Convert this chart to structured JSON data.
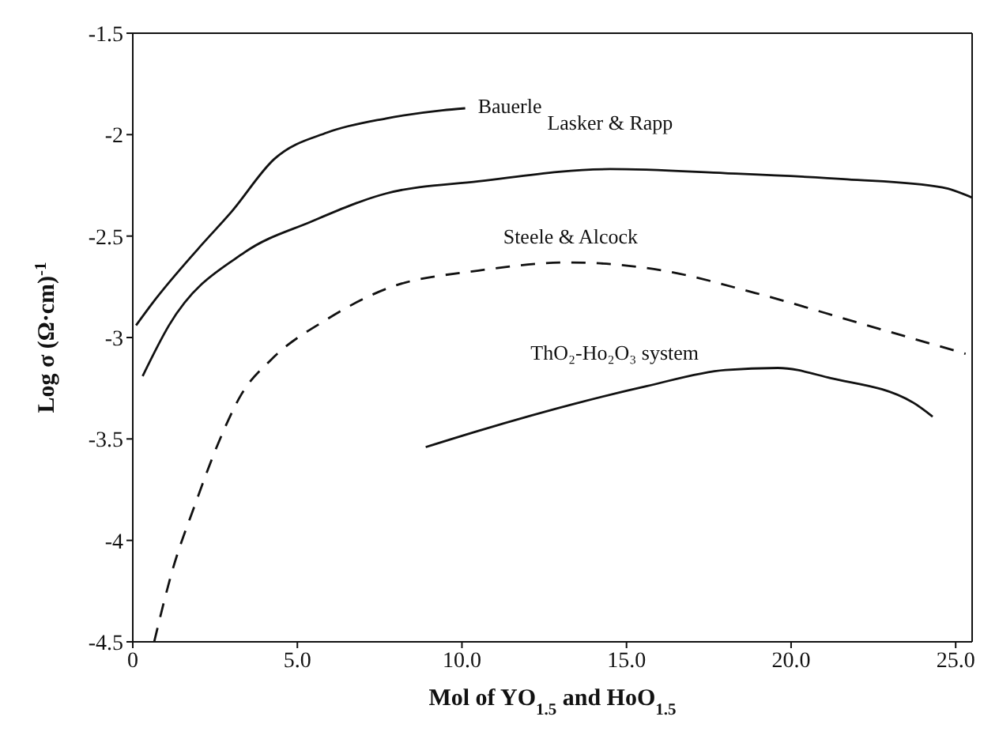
{
  "chart_data": {
    "type": "line",
    "xlabel": "Mol of YO$_{1.5}$ and HoO$_{1.5}$",
    "ylabel": "Log σ (Ω·cm)$^{-1}$",
    "xlim": [
      0,
      25.5
    ],
    "xticks": [
      0,
      {
        "value": 5,
        "label": "5.0"
      },
      {
        "value": 10,
        "label": "10.0"
      },
      {
        "value": 15,
        "label": "15.0"
      },
      {
        "value": 20,
        "label": "20.0"
      },
      {
        "value": 25,
        "label": "25.0"
      }
    ],
    "ylim": [
      -4.5,
      -1.5
    ],
    "yticks": [
      -4.5,
      -4,
      -3.5,
      -3,
      -2.5,
      -2,
      -1.5
    ],
    "series": [
      {
        "name": "Bauerle",
        "color": "#111111",
        "line_style": "solid",
        "x": [
          0.1,
          0.6,
          2.0,
          3.0,
          4.3,
          5.9,
          7.7,
          9.4,
          10.1
        ],
        "values": [
          -2.94,
          -2.83,
          -2.56,
          -2.38,
          -2.12,
          -1.99,
          -1.92,
          -1.88,
          -1.87
        ]
      },
      {
        "name": "Lasker & Rapp",
        "color": "#111111",
        "line_style": "solid",
        "x": [
          0.3,
          1.1,
          3.4,
          5.4,
          7.7,
          10.5,
          14.5,
          18.0,
          21.7,
          24.6,
          25.5
        ],
        "values": [
          -3.19,
          -2.94,
          -2.58,
          -2.43,
          -2.29,
          -2.23,
          -2.17,
          -2.19,
          -2.22,
          -2.26,
          -2.31
        ]
      },
      {
        "name": "Steele & Alcock",
        "color": "#111111",
        "line_style": "dashed",
        "x": [
          0.65,
          1.2,
          1.9,
          2.6,
          3.3,
          4.2,
          5.9,
          7.7,
          10.5,
          13.3,
          16.1,
          18.9,
          22.1,
          25.3
        ],
        "values": [
          -4.5,
          -4.15,
          -3.82,
          -3.52,
          -3.28,
          -3.11,
          -2.91,
          -2.76,
          -2.67,
          -2.63,
          -2.67,
          -2.78,
          -2.93,
          -3.08
        ]
      },
      {
        "name": "ThO₂-Ho₂O₃ system",
        "color": "#111111",
        "line_style": "solid",
        "x": [
          8.9,
          10.5,
          15.6,
          18.0,
          19.6,
          21.2,
          23.7,
          24.3
        ],
        "values": [
          -3.54,
          -3.46,
          -3.24,
          -3.16,
          -3.15,
          -3.2,
          -3.32,
          -3.39
        ]
      }
    ]
  }
}
